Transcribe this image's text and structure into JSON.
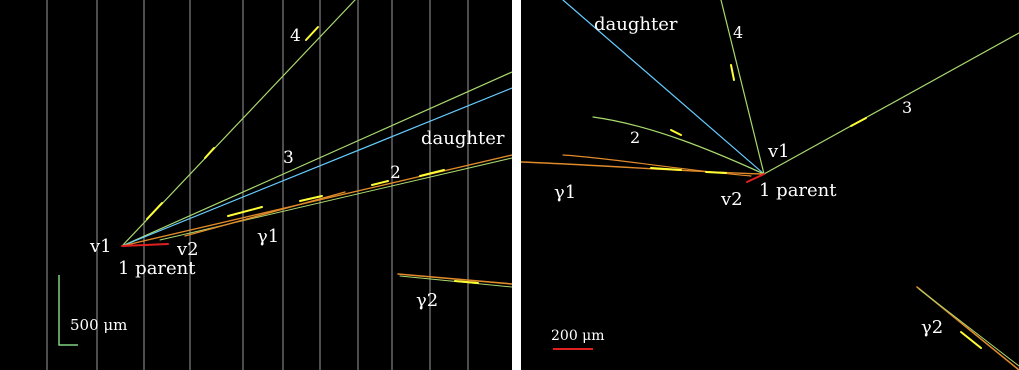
{
  "left_panel": {
    "labels": {
      "track_4": "4",
      "track_3": "3",
      "track_2": "2",
      "daughter": "daughter",
      "vertex_1": "v1",
      "vertex_2": "v2",
      "gamma_1": "γ1",
      "gamma_2": "γ2",
      "parent": "1 parent"
    },
    "scale_bar": {
      "label": "500 μm",
      "color": "#7fd27f"
    }
  },
  "right_panel": {
    "labels": {
      "daughter": "daughter",
      "track_4": "4",
      "track_3": "3",
      "track_2": "2",
      "vertex_1": "v1",
      "vertex_2": "v2",
      "gamma_1": "γ1",
      "gamma_2": "γ2",
      "parent": "1 parent"
    },
    "scale_bar": {
      "label": "200 μm",
      "color": "#e02020"
    }
  },
  "colors": {
    "background": "#000000",
    "grid_line": "#9a9a9a",
    "track_green": "#a9d86e",
    "track_cyan": "#66ccff",
    "track_orange": "#e08a2a",
    "track_red": "#e02020",
    "highlight_yellow": "#ffff33"
  }
}
